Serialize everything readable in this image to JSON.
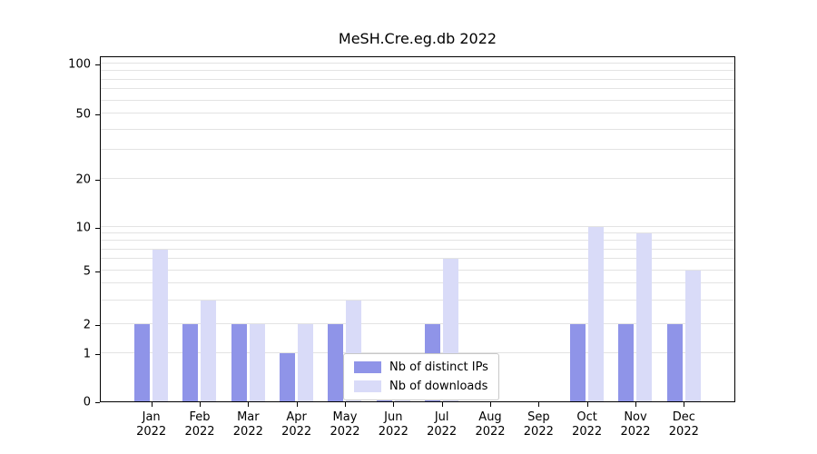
{
  "title": "MeSH.Cre.eg.db 2022",
  "colors": {
    "ips": "#8f94e8",
    "downloads": "#d9dbf8",
    "grid": "#e3e3e3",
    "axis": "#000000",
    "legend_border": "#c8c8c8",
    "background": "#ffffff"
  },
  "legend": {
    "items": [
      {
        "key": "ips",
        "label": "Nb of distinct IPs"
      },
      {
        "key": "downloads",
        "label": "Nb of downloads"
      }
    ]
  },
  "y_axis": {
    "tick_labels": [
      "0",
      "1",
      "2",
      "5",
      "10",
      "20",
      "50",
      "100"
    ],
    "tick_values": [
      0,
      1,
      2,
      5,
      10,
      20,
      50,
      100
    ]
  },
  "chart_data": {
    "type": "bar",
    "title": "MeSH.Cre.eg.db 2022",
    "categories": [
      "Jan 2022",
      "Feb 2022",
      "Mar 2022",
      "Apr 2022",
      "May 2022",
      "Jun 2022",
      "Jul 2022",
      "Aug 2022",
      "Sep 2022",
      "Oct 2022",
      "Nov 2022",
      "Dec 2022"
    ],
    "series": [
      {
        "name": "Nb of distinct IPs",
        "values": [
          2,
          2,
          2,
          1,
          2,
          1,
          2,
          0,
          0,
          2,
          2,
          2
        ]
      },
      {
        "name": "Nb of downloads",
        "values": [
          7,
          3,
          2,
          2,
          3,
          1,
          6,
          0,
          0,
          10,
          9,
          5
        ]
      }
    ],
    "y_scale": "log",
    "y_ticks": [
      0,
      1,
      2,
      5,
      10,
      20,
      50,
      100
    ],
    "ylim": [
      0,
      100
    ],
    "grid": "horizontal",
    "legend_position": "lower center"
  }
}
